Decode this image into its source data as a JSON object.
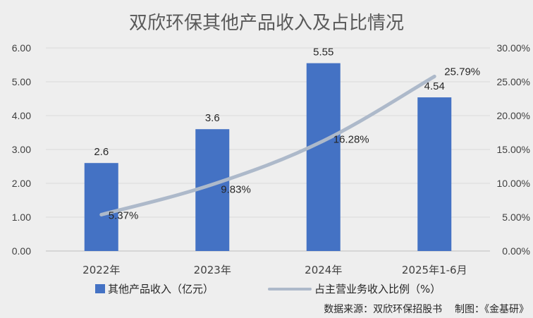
{
  "chart_data": {
    "type": "bar",
    "title": "双欣环保其他产品收入及占比情况",
    "categories": [
      "2022年",
      "2023年",
      "2024年",
      "2025年1-6月"
    ],
    "series": [
      {
        "name": "其他产品收入（亿元）",
        "type": "bar",
        "axis": "left",
        "color": "#4472C4",
        "values": [
          2.6,
          3.6,
          5.55,
          4.54
        ],
        "labels": [
          "2.6",
          "3.6",
          "5.55",
          "4.54"
        ]
      },
      {
        "name": "占主营业务收入比例（%）",
        "type": "line",
        "axis": "right",
        "color": "#ADB9CA",
        "values": [
          5.37,
          9.83,
          16.28,
          25.79
        ],
        "labels": [
          "5.37%",
          "9.83%",
          "16.28%",
          "25.79%"
        ]
      }
    ],
    "y_left": {
      "min": 0,
      "max": 6,
      "step": 1,
      "ticks": [
        "0.00",
        "1.00",
        "2.00",
        "3.00",
        "4.00",
        "5.00",
        "6.00"
      ]
    },
    "y_right": {
      "min": 0,
      "max": 30,
      "step": 5,
      "ticks": [
        "0.00%",
        "5.00%",
        "10.00%",
        "15.00%",
        "20.00%",
        "25.00%",
        "30.00%"
      ]
    },
    "grid": true,
    "legend": "bottom",
    "source": "数据来源：双欣环保招股书    制图：《金基研》"
  }
}
